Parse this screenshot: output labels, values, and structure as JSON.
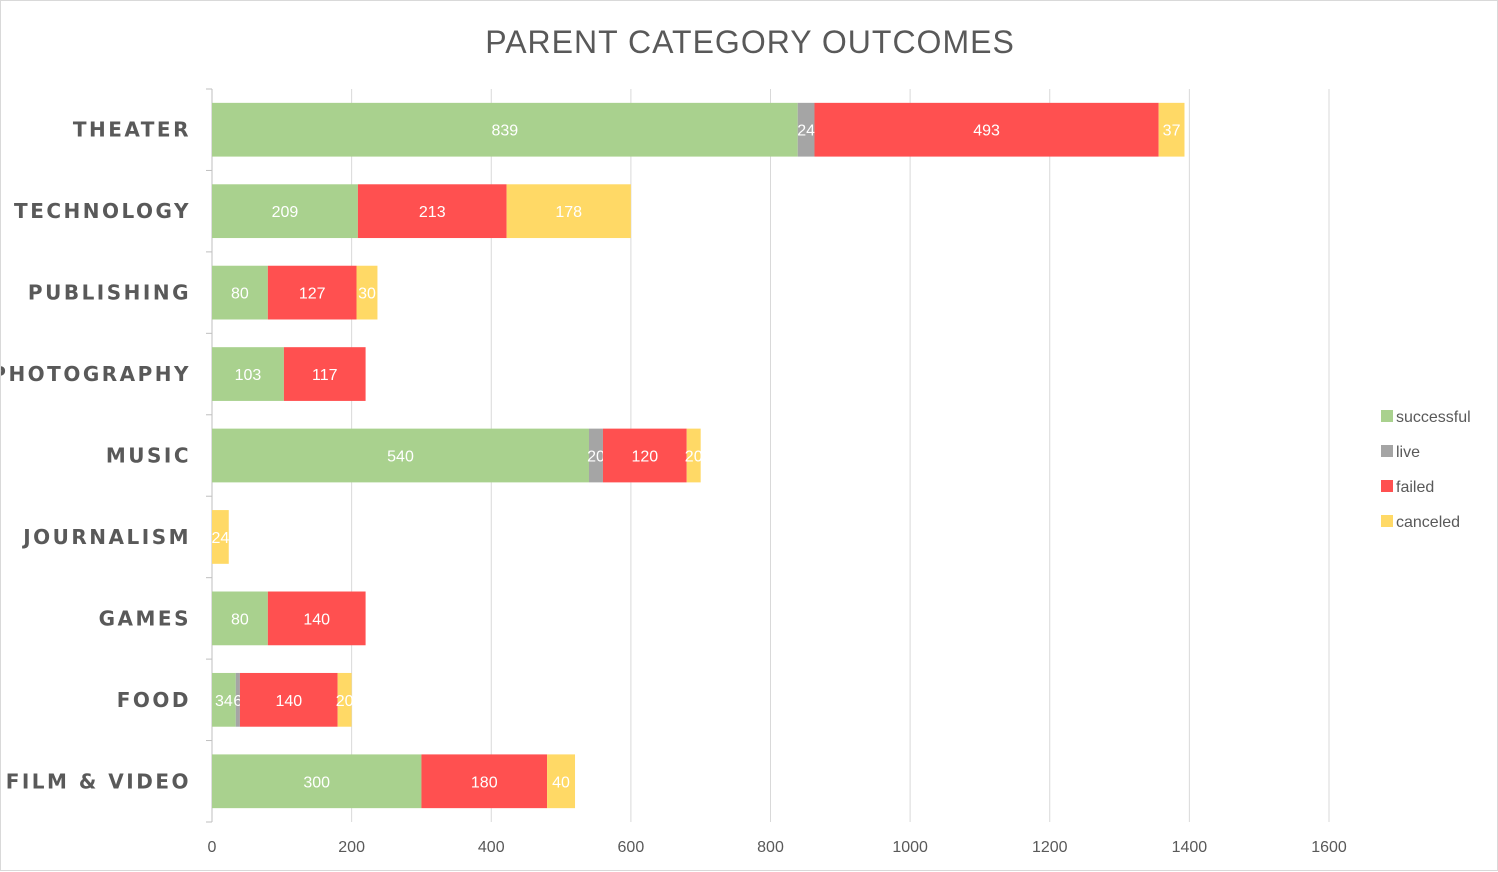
{
  "chart_data": {
    "type": "bar",
    "orientation": "horizontal",
    "stacked": true,
    "title": "PARENT CATEGORY OUTCOMES",
    "categories": [
      "THEATER",
      "TECHNOLOGY",
      "PUBLISHING",
      "PHOTOGRAPHY",
      "MUSIC",
      "JOURNALISM",
      "GAMES",
      "FOOD",
      "FILM & VIDEO"
    ],
    "series": [
      {
        "name": "successful",
        "color": "#a9d18e",
        "values": [
          839,
          209,
          80,
          103,
          540,
          0,
          80,
          34,
          300
        ]
      },
      {
        "name": "live",
        "color": "#a5a5a5",
        "values": [
          24,
          0,
          0,
          0,
          20,
          0,
          0,
          6,
          0
        ]
      },
      {
        "name": "failed",
        "color": "#ff5050",
        "values": [
          493,
          213,
          127,
          117,
          120,
          0,
          140,
          140,
          180
        ]
      },
      {
        "name": "canceled",
        "color": "#ffd966",
        "values": [
          37,
          178,
          30,
          0,
          20,
          24,
          0,
          20,
          40
        ]
      }
    ],
    "xlim": [
      0,
      1600
    ],
    "xticks": [
      0,
      200,
      400,
      600,
      800,
      1000,
      1200,
      1400,
      1600
    ],
    "xlabel": "",
    "ylabel": "",
    "grid": true,
    "legend": "right",
    "data_labels": true
  }
}
